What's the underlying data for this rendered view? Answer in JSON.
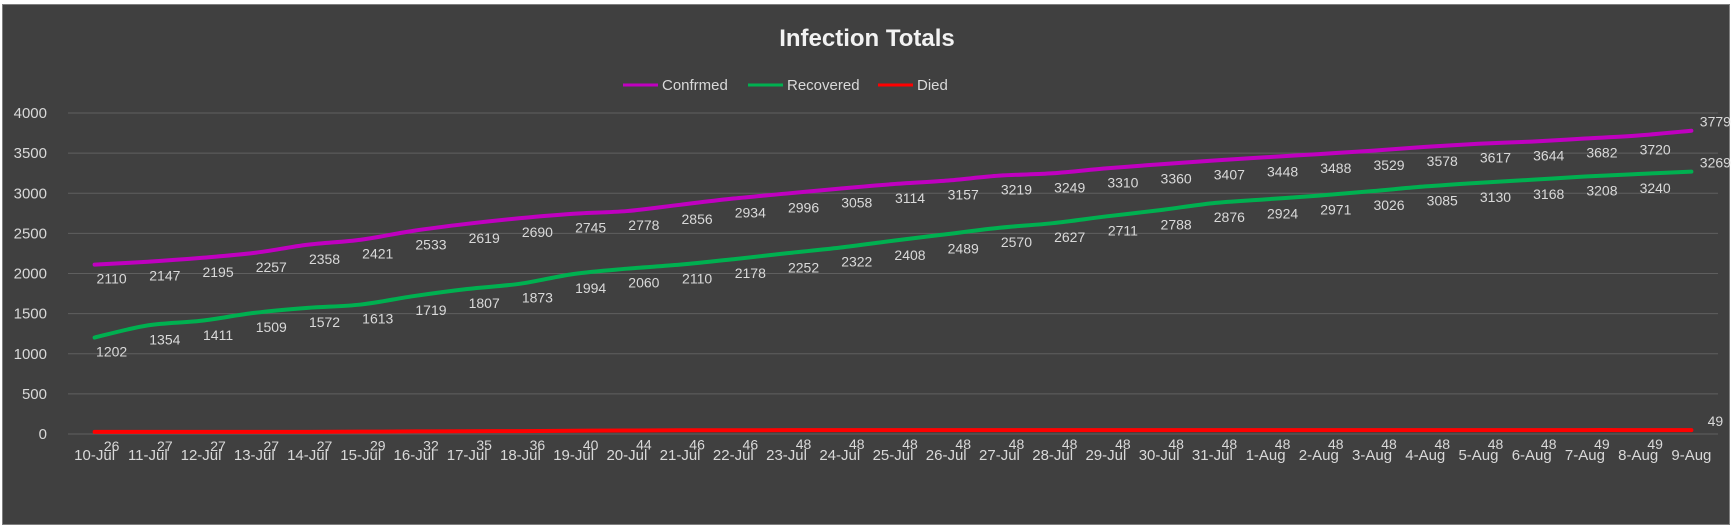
{
  "chart_data": {
    "type": "line",
    "title": "Infection Totals",
    "xlabel": "",
    "ylabel": "",
    "ylim": [
      0,
      4000
    ],
    "yticks": [
      0,
      500,
      1000,
      1500,
      2000,
      2500,
      3000,
      3500,
      4000
    ],
    "grid": true,
    "legend_position": "top",
    "categories": [
      "10-Jul",
      "11-Jul",
      "12-Jul",
      "13-Jul",
      "14-Jul",
      "15-Jul",
      "16-Jul",
      "17-Jul",
      "18-Jul",
      "19-Jul",
      "20-Jul",
      "21-Jul",
      "22-Jul",
      "23-Jul",
      "24-Jul",
      "25-Jul",
      "26-Jul",
      "27-Jul",
      "28-Jul",
      "29-Jul",
      "30-Jul",
      "31-Jul",
      "1-Aug",
      "2-Aug",
      "3-Aug",
      "4-Aug",
      "5-Aug",
      "6-Aug",
      "7-Aug",
      "8-Aug",
      "9-Aug"
    ],
    "series": [
      {
        "name": "Confrmed",
        "color": "#c000c0",
        "values": [
          2110,
          2147,
          2195,
          2257,
          2358,
          2421,
          2533,
          2619,
          2690,
          2745,
          2778,
          2856,
          2934,
          2996,
          3058,
          3114,
          3157,
          3219,
          3249,
          3310,
          3360,
          3407,
          3448,
          3488,
          3529,
          3578,
          3617,
          3644,
          3682,
          3720,
          3779
        ]
      },
      {
        "name": "Recovered",
        "color": "#00b050",
        "values": [
          1202,
          1354,
          1411,
          1509,
          1572,
          1613,
          1719,
          1807,
          1873,
          1994,
          2060,
          2110,
          2178,
          2252,
          2322,
          2408,
          2489,
          2570,
          2627,
          2711,
          2788,
          2876,
          2924,
          2971,
          3026,
          3085,
          3130,
          3168,
          3208,
          3240,
          3269
        ]
      },
      {
        "name": "Died",
        "color": "#ff0000",
        "values": [
          26,
          27,
          27,
          27,
          27,
          29,
          32,
          35,
          36,
          40,
          44,
          46,
          46,
          48,
          48,
          48,
          48,
          48,
          48,
          48,
          48,
          48,
          48,
          48,
          48,
          48,
          48,
          48,
          49,
          49,
          49
        ]
      }
    ]
  }
}
